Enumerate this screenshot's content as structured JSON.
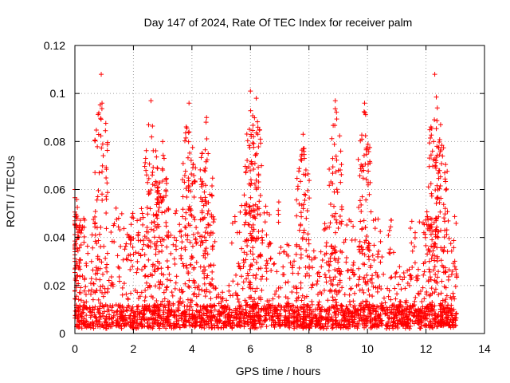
{
  "chart_data": {
    "type": "scatter",
    "title": "Day 147 of 2024, Rate Of TEC Index for receiver palm",
    "xlabel": "GPS time / hours",
    "ylabel": "ROTI / TECUs",
    "xlim": [
      0,
      14
    ],
    "ylim": [
      0,
      0.12
    ],
    "xticks": [
      0,
      2,
      4,
      6,
      8,
      10,
      12,
      14
    ],
    "yticks": [
      0,
      0.02,
      0.04,
      0.06,
      0.08,
      0.1,
      0.12
    ],
    "xtick_labels": [
      "0",
      "2",
      "4",
      "6",
      "8",
      "10",
      "12",
      "14"
    ],
    "ytick_labels": [
      "0",
      "0.02",
      "0.04",
      "0.06",
      "0.08",
      "0.1",
      "0.12"
    ],
    "grid": true,
    "marker": "+",
    "color": "#ff0000",
    "series": [
      {
        "name": "ROTI",
        "x_range": [
          0,
          13.05
        ],
        "n_points": 2600,
        "baseline_range": [
          0.002,
          0.012
        ],
        "peaks": [
          {
            "x": 0.0,
            "y": 0.06
          },
          {
            "x": 0.9,
            "y": 0.108
          },
          {
            "x": 2.6,
            "y": 0.097
          },
          {
            "x": 3.0,
            "y": 0.08
          },
          {
            "x": 3.9,
            "y": 0.096
          },
          {
            "x": 4.5,
            "y": 0.09
          },
          {
            "x": 6.0,
            "y": 0.101
          },
          {
            "x": 6.2,
            "y": 0.098
          },
          {
            "x": 7.8,
            "y": 0.083
          },
          {
            "x": 8.9,
            "y": 0.097
          },
          {
            "x": 9.9,
            "y": 0.096
          },
          {
            "x": 12.3,
            "y": 0.108
          },
          {
            "x": 12.5,
            "y": 0.087
          }
        ]
      }
    ]
  }
}
